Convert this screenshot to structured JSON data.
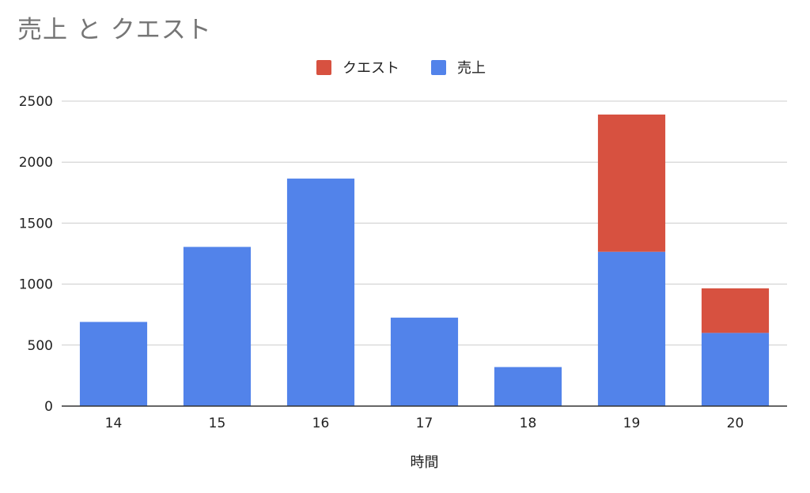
{
  "chart_data": {
    "type": "bar",
    "stacked": true,
    "title": "売上 と クエスト",
    "xlabel": "時間",
    "ylabel": "",
    "categories": [
      "14",
      "15",
      "16",
      "17",
      "18",
      "19",
      "20"
    ],
    "series": [
      {
        "name": "売上",
        "color": "#5283EA",
        "values": [
          690,
          1305,
          1865,
          725,
          320,
          1265,
          600
        ]
      },
      {
        "name": "クエスト",
        "color": "#D75140",
        "values": [
          0,
          0,
          0,
          0,
          0,
          1125,
          365
        ]
      }
    ],
    "legend_order": [
      "クエスト",
      "売上"
    ],
    "legend_position": "top",
    "ylim": [
      0,
      2500
    ],
    "yticks": [
      0,
      500,
      1000,
      1500,
      2000,
      2500
    ],
    "grid": true
  }
}
